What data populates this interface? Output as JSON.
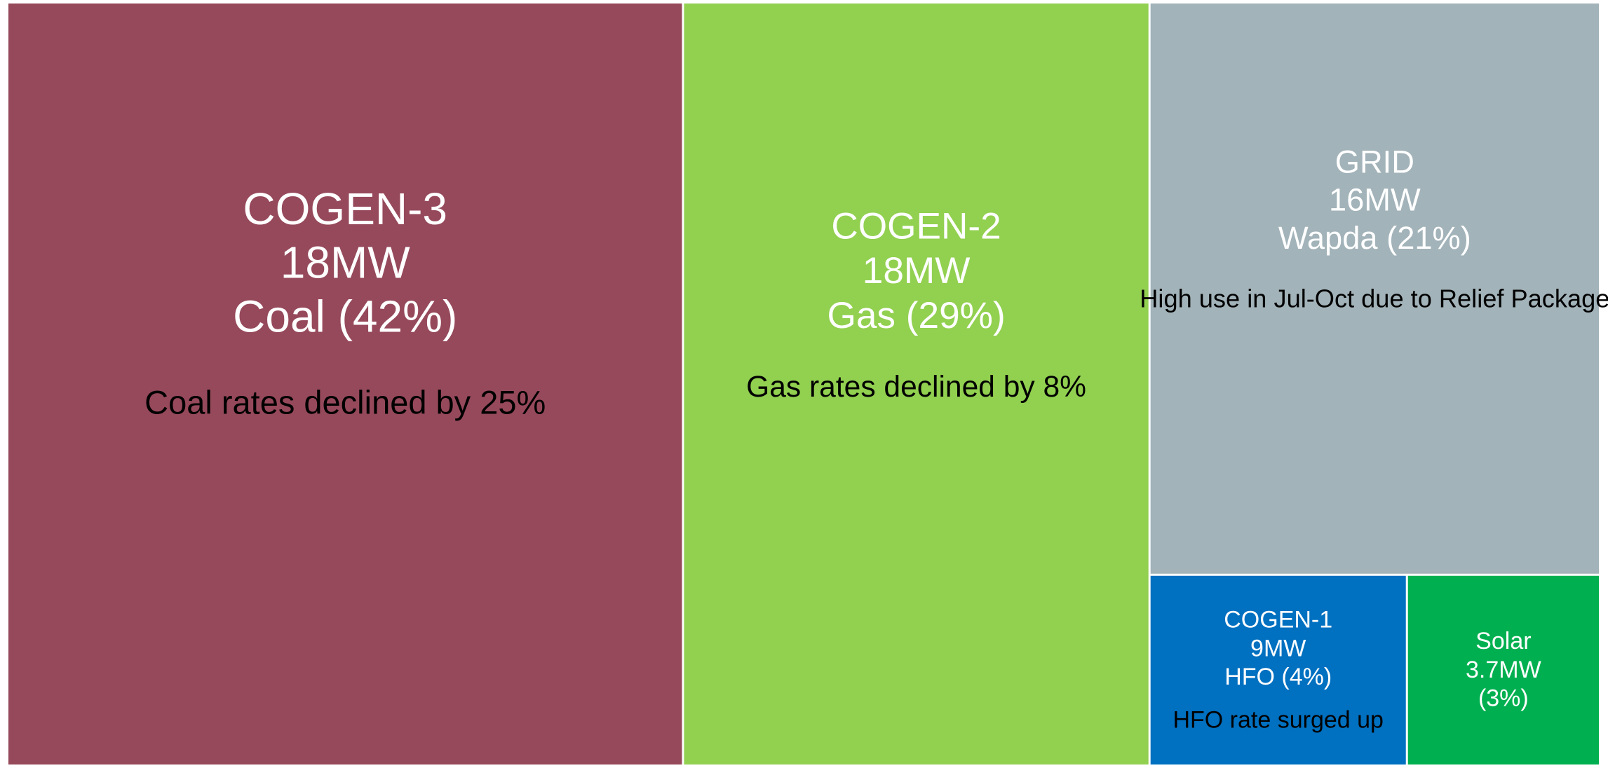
{
  "chart_data": {
    "type": "treemap",
    "categories": [
      "COGEN-3",
      "COGEN-2",
      "GRID",
      "COGEN-1",
      "Solar"
    ],
    "capacities": [
      "18MW",
      "18MW",
      "16MW",
      "9MW",
      "3.7MW"
    ],
    "values": [
      42,
      29,
      21,
      4,
      3
    ],
    "value_labels": [
      "Coal (42%)",
      "Gas (29%)",
      "Wapda (21%)",
      "HFO (4%)",
      "(3%)"
    ],
    "annotations": [
      "Coal rates declined by 25%",
      "Gas rates declined by 8%",
      "High use in Jul-Oct due to Relief Package",
      "HFO rate surged up",
      null
    ],
    "colors": [
      "#96495b",
      "#92d050",
      "#a2b3b9",
      "#0070c0",
      "#00b050"
    ]
  }
}
